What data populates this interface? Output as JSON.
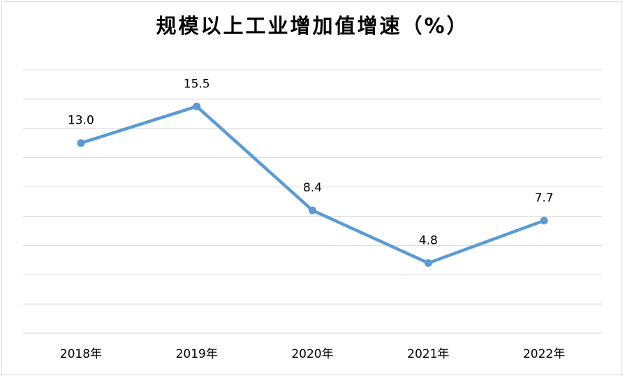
{
  "chart_data": {
    "type": "line",
    "title": "规模以上工业增加值增速（%）",
    "categories": [
      "2018年",
      "2019年",
      "2020年",
      "2021年",
      "2022年"
    ],
    "series": [
      {
        "values": [
          13.0,
          15.5,
          8.4,
          4.8,
          7.7
        ],
        "labels": [
          "13.0",
          "15.5",
          "8.4",
          "4.8",
          "7.7"
        ],
        "color": "#5b9bd5"
      }
    ],
    "ylim": [
      0,
      18
    ],
    "grid": true,
    "gridline_color": "#d9d9d9",
    "legend": "none"
  }
}
